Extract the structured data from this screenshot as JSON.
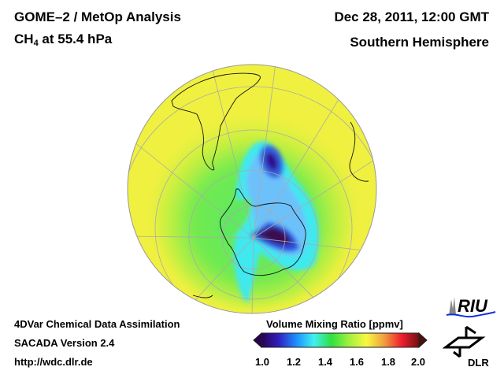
{
  "header": {
    "title_line1": "GOME–2 / MetOp Analysis",
    "species": "CH",
    "species_sub": "4",
    "level": " at 55.4 hPa",
    "date": "Dec 28, 2011, 12:00 GMT",
    "hemisphere": "Southern Hemisphere"
  },
  "footer": {
    "line1": "4DVar Chemical Data Assimilation",
    "line2": "SACADA Version 2.4",
    "line3": "http://wdc.dlr.de"
  },
  "colorbar": {
    "title": "Volume Mixing Ratio [ppmv]",
    "ticks": [
      "1.0",
      "1.2",
      "1.4",
      "1.6",
      "1.8",
      "2.0"
    ],
    "range": [
      1.0,
      2.0
    ],
    "colors": [
      "#2a0050",
      "#3020c0",
      "#1e90ff",
      "#40f0f0",
      "#30e040",
      "#a0f040",
      "#f8f840",
      "#f0a040",
      "#f02030",
      "#701010"
    ]
  },
  "logos": {
    "riu": "RIU",
    "dlr": "DLR"
  },
  "map": {
    "projection": "orthographic south-polar",
    "field_colors": {
      "background": "#f0f040",
      "green": "#50e850",
      "cyan": "#40e8f0",
      "blue": "#3080f0",
      "dark": "#3a1060"
    }
  }
}
